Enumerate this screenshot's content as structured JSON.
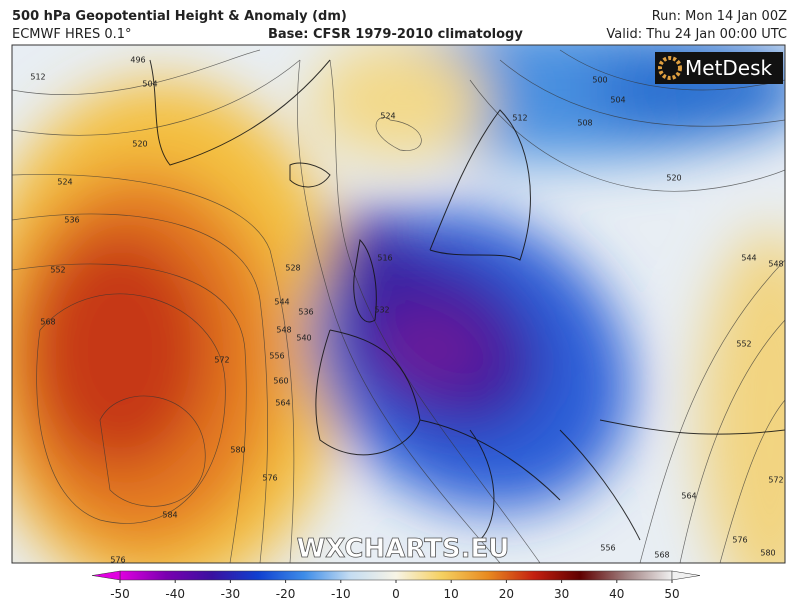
{
  "header": {
    "title": "500 hPa Geopotential Height & Anomaly (dm)",
    "model": "ECMWF HRES 0.1°",
    "base": "Base: CFSR 1979-2010 climatology",
    "run": "Run: Mon 14 Jan 00Z",
    "valid": "Valid: Thu 24 Jan 00:00 UTC"
  },
  "logo": "MetDesk",
  "watermark": "WXCHARTS.EU",
  "contour_labels": [
    "496",
    "504",
    "512",
    "520",
    "524",
    "536",
    "552",
    "568",
    "572",
    "580",
    "576",
    "584",
    "576",
    "528",
    "536",
    "544",
    "548",
    "556",
    "560",
    "564",
    "540",
    "532",
    "516",
    "524",
    "512",
    "500",
    "504",
    "508",
    "520",
    "544",
    "548",
    "552",
    "564",
    "572",
    "580",
    "556",
    "568",
    "576"
  ],
  "colorbar": {
    "lim": [
      -50,
      50
    ],
    "ticks": [
      -50,
      -40,
      -30,
      -20,
      -10,
      0,
      10,
      20,
      30,
      40,
      50
    ],
    "colors": [
      "#e000e0",
      "#7a00b0",
      "#3a10a0",
      "#1040d0",
      "#3d8ce8",
      "#c4dcf2",
      "#f7f4e6",
      "#f5d060",
      "#e88a20",
      "#c42010",
      "#600000",
      "#a08080",
      "#f0f0f0"
    ]
  }
}
